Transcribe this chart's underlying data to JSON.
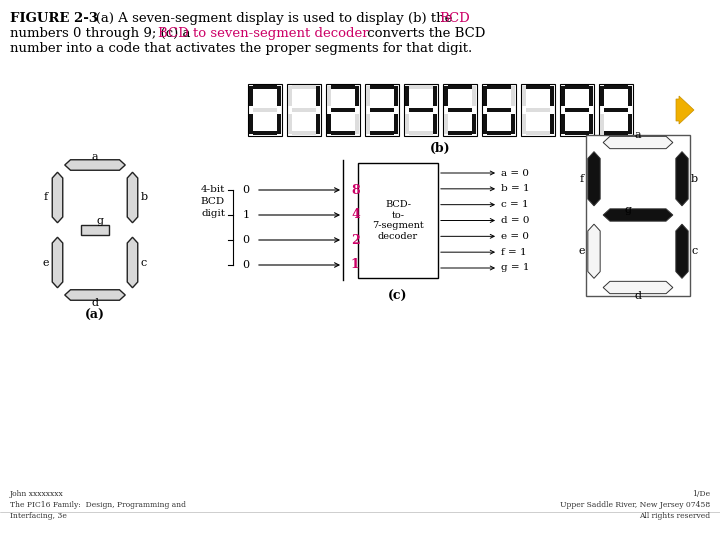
{
  "title_bold": "FIGURE 2-3",
  "title_rest1": "   (a) A seven-segment display is used to display (b) the ",
  "title_bcd1": "BCD",
  "title_line2a": "numbers 0 through 9; (c) a ",
  "title_line2b": "BCD to seven-segment decoder",
  "title_line2c": " converts the BCD",
  "title_line3": "number into a code that activates the proper segments for that digit.",
  "footer_left": "John xxxxxxxx\nThe PIC16 Family:  Design, Programming and\nInterfacing, 3e",
  "footer_right": "1/De\nUpper Saddle River, New Jersey 07458\nAll rights reserved",
  "red_color": "#cc0066",
  "black": "#000000",
  "white": "#ffffff",
  "gray_seg": "#e0e0e0",
  "dark_seg": "#1a1a1a",
  "orange_arrow": "#f0b000",
  "bcd_weights": [
    "8",
    "4",
    "2",
    "1"
  ],
  "bcd_inputs": [
    "0",
    "1",
    "0",
    "0"
  ],
  "out_labels": [
    "a = 0",
    "b = 1",
    "c = 1",
    "d = 0",
    "e = 0",
    "f = 1",
    "g = 1"
  ],
  "digit_segs": [
    {
      "a": 1,
      "b": 1,
      "c": 1,
      "d": 1,
      "e": 1,
      "f": 1,
      "g": 0
    },
    {
      "a": 0,
      "b": 1,
      "c": 1,
      "d": 0,
      "e": 0,
      "f": 0,
      "g": 0
    },
    {
      "a": 1,
      "b": 1,
      "c": 0,
      "d": 1,
      "e": 1,
      "f": 0,
      "g": 1
    },
    {
      "a": 1,
      "b": 1,
      "c": 1,
      "d": 1,
      "e": 0,
      "f": 0,
      "g": 1
    },
    {
      "a": 0,
      "b": 1,
      "c": 1,
      "d": 0,
      "e": 0,
      "f": 1,
      "g": 1
    },
    {
      "a": 1,
      "b": 0,
      "c": 1,
      "d": 1,
      "e": 0,
      "f": 1,
      "g": 1
    },
    {
      "a": 1,
      "b": 0,
      "c": 1,
      "d": 1,
      "e": 1,
      "f": 1,
      "g": 1
    },
    {
      "a": 1,
      "b": 1,
      "c": 1,
      "d": 0,
      "e": 0,
      "f": 0,
      "g": 0
    },
    {
      "a": 1,
      "b": 1,
      "c": 1,
      "d": 1,
      "e": 1,
      "f": 1,
      "g": 1
    },
    {
      "a": 1,
      "b": 1,
      "c": 1,
      "d": 1,
      "e": 0,
      "f": 1,
      "g": 1
    }
  ],
  "seg4": {
    "a": 0,
    "b": 1,
    "c": 1,
    "d": 0,
    "e": 0,
    "f": 1,
    "g": 1
  }
}
